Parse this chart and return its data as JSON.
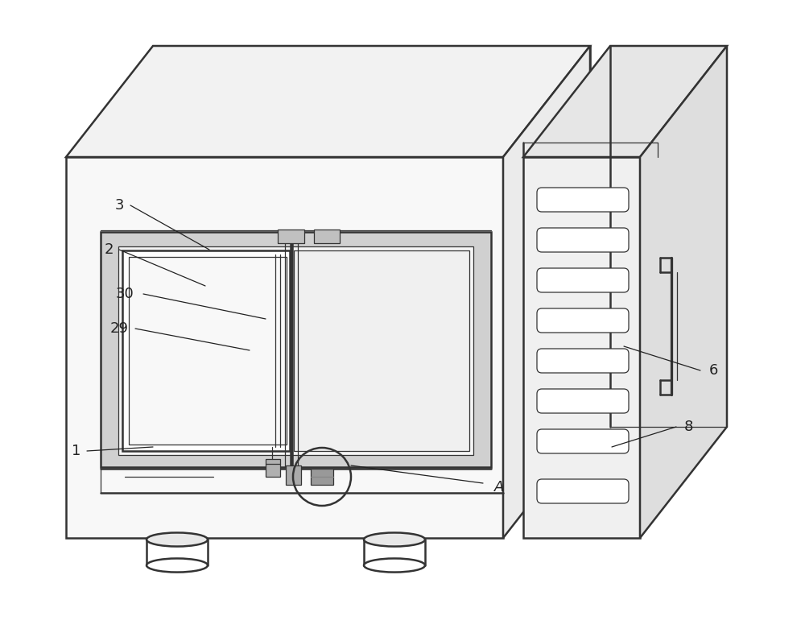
{
  "bg_color": "#ffffff",
  "line_color": "#333333",
  "lw_main": 1.8,
  "lw_thin": 0.9,
  "lw_anno": 0.9,
  "font_size": 13,
  "anno_color": "#222222"
}
